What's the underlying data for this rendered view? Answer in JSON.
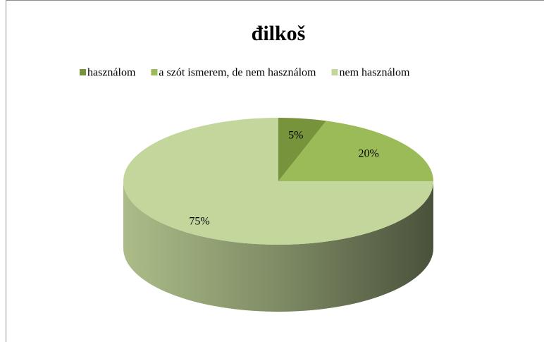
{
  "chart_data": {
    "type": "pie",
    "title": "đilkoš",
    "categories": [
      "használom",
      "a szót ismerem, de nem használom",
      "nem használom"
    ],
    "values": [
      5,
      20,
      75
    ],
    "value_labels": [
      "5%",
      "20%",
      "75%"
    ],
    "colors": [
      "#77933c",
      "#9bbb59",
      "#c3d69b"
    ],
    "legend": "top"
  }
}
